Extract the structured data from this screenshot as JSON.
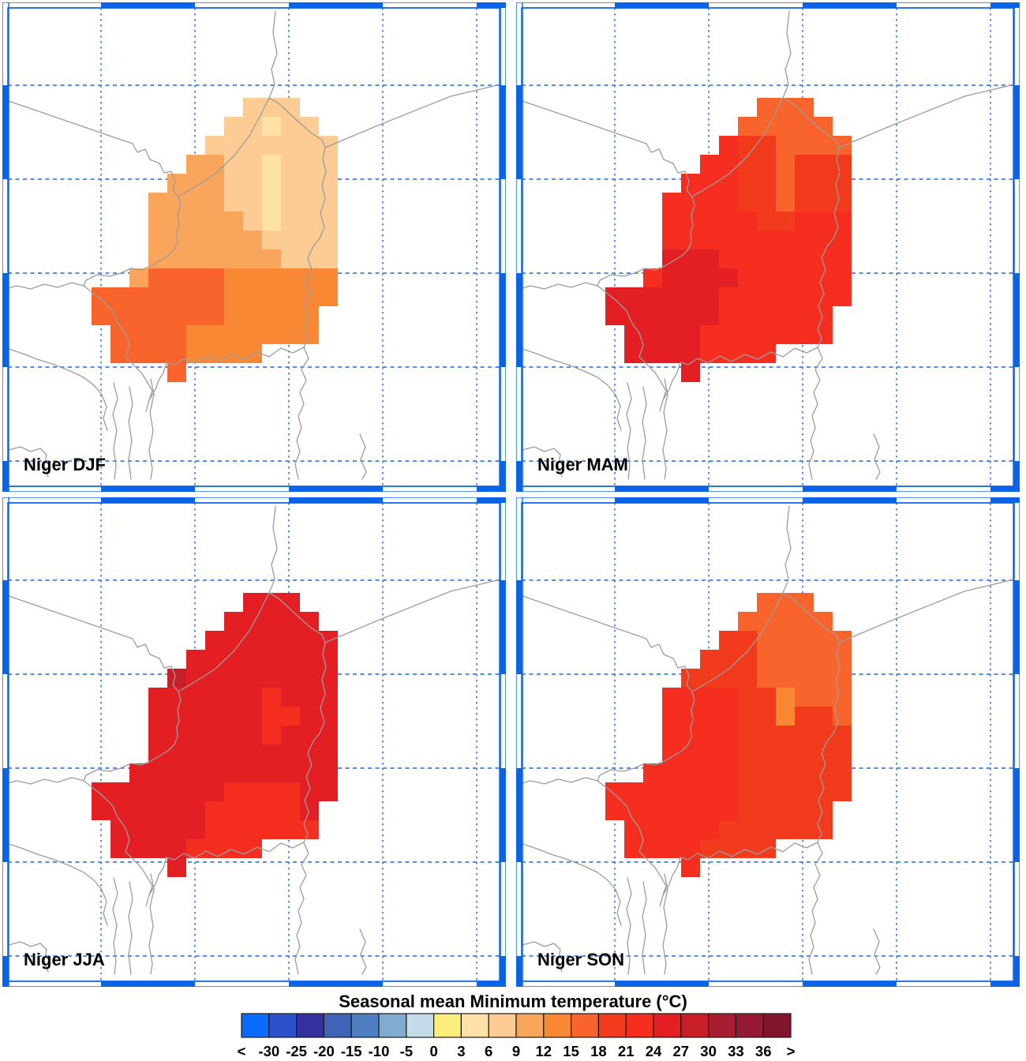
{
  "figure": {
    "panels": [
      {
        "id": "djf",
        "label": "Niger DJF"
      },
      {
        "id": "mam",
        "label": "Niger MAM"
      },
      {
        "id": "jja",
        "label": "Niger JJA"
      },
      {
        "id": "son",
        "label": "Niger SON"
      }
    ],
    "colorbar": {
      "title": "Seasonal mean Minimum temperature (°C)",
      "tick_labels": [
        "<",
        "-30",
        "-25",
        "-20",
        "-15",
        "-10",
        "-5",
        "0",
        "3",
        "6",
        "9",
        "12",
        "15",
        "18",
        "21",
        "24",
        "27",
        "30",
        "33",
        "36",
        ">"
      ],
      "segment_colors": [
        "#0A6CFC",
        "#2B51CB",
        "#34319F",
        "#3F63B5",
        "#4C80C3",
        "#82ABD2",
        "#C4DCEA",
        "#FCEE7D",
        "#FDE1A7",
        "#FCCC94",
        "#FAA55C",
        "#F98834",
        "#F8642B",
        "#F23A1D",
        "#F52E20",
        "#E41F24",
        "#C81E29",
        "#A81C31",
        "#961A31",
        "#82152D"
      ]
    }
  },
  "chart_data": {
    "type": "heatmap",
    "title": "Seasonal mean Minimum temperature (°C)",
    "units": "°C",
    "categories": [
      "Niger DJF",
      "Niger MAM",
      "Niger JJA",
      "Niger SON"
    ],
    "bin_edges": [
      -30,
      -25,
      -20,
      -15,
      -10,
      -5,
      0,
      3,
      6,
      9,
      12,
      15,
      18,
      21,
      24,
      27,
      30,
      33,
      36
    ],
    "legend": {
      "l": "3 to 6",
      "a": "6 to 9",
      "b": "9 to 12",
      "c": "12 to 15",
      "d": "15 to 18",
      "e": "18 to 21",
      "f": "21 to 24",
      "g": "24 to 27",
      "h": "27 to 30"
    },
    "palette_by_code": {
      "l": "#FDE1A7",
      "a": "#FCCC94",
      "b": "#FAA55C",
      "c": "#F98834",
      "d": "#F8642B",
      "e": "#F23A1D",
      "f": "#F52E20",
      "g": "#E41F24",
      "h": "#C81E29"
    },
    "rasters": {
      "djf": [
        "........aaa..",
        ".......aalaa.",
        "......aaaaaaa",
        ".....bbaalaaa",
        "....bbbaalaaa",
        "...bbbbaalaaa",
        "...bbbbbalaaa",
        "...bbbbbbaaaa",
        "...bbbbbbbaaa",
        "..bddddcccccc",
        "dddddddcccccc",
        "dddddddccccc.",
        ".ddddccccccc.",
        ".ddddcccc....",
        "....d........"
      ],
      "mam": [
        "........ddd..",
        ".......ddddd.",
        "......feedddd",
        ".....ffeedeee",
        "....fffeedeee",
        "...ffffeedeee",
        "...fffffeefff",
        "...ffffffffff",
        "...gggfffffff",
        "..fggggffffff",
        "ggggggfffffff",
        "ggggggffffff.",
        ".ggggfffffff.",
        ".ggggffff....",
        "....g........"
      ],
      "jja": [
        "........ggg..",
        ".......ggggg.",
        "......ggggggg",
        ".....gggggggg",
        "....hgggggggg",
        "...ggggggfggg",
        "...ggggggffgg",
        "...ggggggfggg",
        "...gggggggggg",
        "..ggggggggggg",
        "gggggggffffgg",
        "ggggggfffffg.",
        ".gggggffffff.",
        ".ggggffff....",
        "....g........"
      ],
      "son": [
        "........ddd..",
        ".......ddddd.",
        "......eeddddd",
        ".....eeeddddd",
        "....eeeeddddd",
        "...ffffeecddd",
        "...ffffeeceed",
        "...ffffeeeeee",
        "...ffffeeeeee",
        "..fffffeeeeee",
        "fffffffeeeeee",
        "fffffffeeeee.",
        ".fffffeeeeee.",
        ".ffffeeee....",
        "....f........"
      ]
    }
  },
  "colors": {
    "frame_blue": "#0A64E8",
    "grid_dash_blue": "#3B7CE8",
    "country_border_gray": "#9C9C9C",
    "colorbar_outline": "#1A1A1A",
    "label_black": "#000000",
    "background": "#FFFFFF"
  }
}
